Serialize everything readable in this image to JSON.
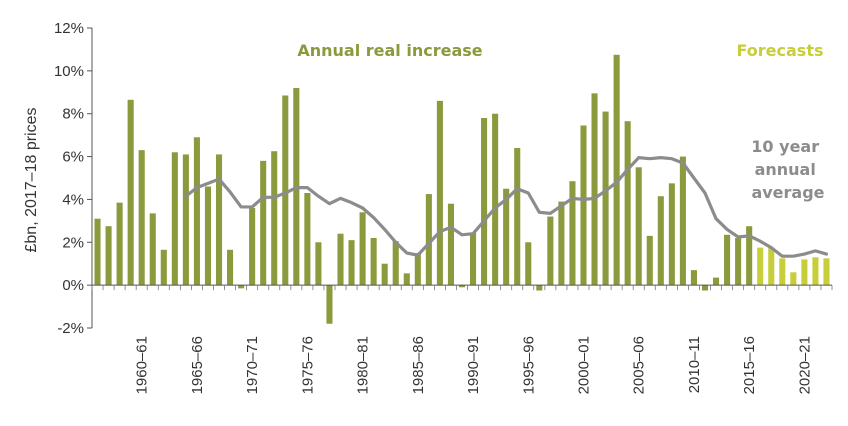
{
  "chart_data": {
    "type": "bar",
    "ylabel": "£bn, 2017–18 prices",
    "ylim": [
      -2,
      12
    ],
    "yticks": [
      -2,
      0,
      2,
      4,
      6,
      8,
      10,
      12
    ],
    "ytick_labels": [
      "-2%",
      "0%",
      "2%",
      "4%",
      "6%",
      "8%",
      "10%",
      "12%"
    ],
    "xtick_labels": [
      {
        "label": "1960–61",
        "index": 4
      },
      {
        "label": "1965–66",
        "index": 9
      },
      {
        "label": "1970–71",
        "index": 14
      },
      {
        "label": "1975–76",
        "index": 19
      },
      {
        "label": "1980–81",
        "index": 24
      },
      {
        "label": "1985–86",
        "index": 29
      },
      {
        "label": "1990–91",
        "index": 34
      },
      {
        "label": "1995–96",
        "index": 39
      },
      {
        "label": "2000–01",
        "index": 44
      },
      {
        "label": "2005–06",
        "index": 49
      },
      {
        "label": "2010–11",
        "index": 54
      },
      {
        "label": "2015–16",
        "index": 59
      },
      {
        "label": "2020–21",
        "index": 64
      }
    ],
    "series": [
      {
        "name": "Annual real increase",
        "color": "#8a9a3c",
        "values": [
          3.1,
          2.75,
          3.85,
          8.65,
          6.3,
          3.35,
          1.65,
          6.2,
          6.1,
          6.9,
          4.6,
          6.1,
          1.65,
          -0.15,
          3.6,
          5.8,
          6.25,
          8.85,
          9.2,
          4.3,
          2.0,
          -1.8,
          2.4,
          2.1,
          3.4,
          2.2,
          1.0,
          2.05,
          0.55,
          1.5,
          4.25,
          8.6,
          3.8,
          -0.1,
          2.45,
          7.8,
          8.0,
          4.5,
          6.4,
          2.0,
          -0.25,
          3.2,
          3.9,
          4.85,
          7.45,
          8.95,
          8.1,
          10.75,
          7.65,
          5.5,
          2.3,
          4.15,
          4.75,
          6.0,
          0.7,
          -0.25,
          0.35,
          2.35,
          2.2,
          2.75
        ]
      },
      {
        "name": "Forecasts",
        "color": "#c8ce3a",
        "start_index": 60,
        "values": [
          1.75,
          1.75,
          1.25,
          0.6,
          1.2,
          1.3,
          1.25
        ]
      },
      {
        "name": "10 year annual average",
        "type": "line",
        "color": "#8c8c8c",
        "start_index": 8,
        "values": [
          4.15,
          4.55,
          4.75,
          4.95,
          4.35,
          3.65,
          3.65,
          4.1,
          4.1,
          4.3,
          4.55,
          4.55,
          4.15,
          3.8,
          4.05,
          3.85,
          3.6,
          3.15,
          2.6,
          2.0,
          1.5,
          1.4,
          1.95,
          2.5,
          2.7,
          2.35,
          2.4,
          3.0,
          3.6,
          4.0,
          4.5,
          4.3,
          3.4,
          3.35,
          3.7,
          4.05,
          4.0,
          4.05,
          4.4,
          4.8,
          5.4,
          5.95,
          5.9,
          5.95,
          5.9,
          5.7,
          5.0,
          4.3,
          3.1,
          2.6,
          2.25,
          2.3,
          2.05,
          1.75,
          1.35,
          1.35,
          1.45,
          1.6,
          1.45
        ]
      }
    ],
    "annotations": [
      {
        "text": "Annual real increase",
        "color": "#8a9a3c"
      },
      {
        "text": "Forecasts",
        "color": "#c8ce3a"
      },
      {
        "text": "10 year annual average",
        "lines": [
          "10 year",
          "annual",
          "average"
        ],
        "color": "#8c8c8c"
      }
    ],
    "grid": false,
    "legend": "none"
  }
}
